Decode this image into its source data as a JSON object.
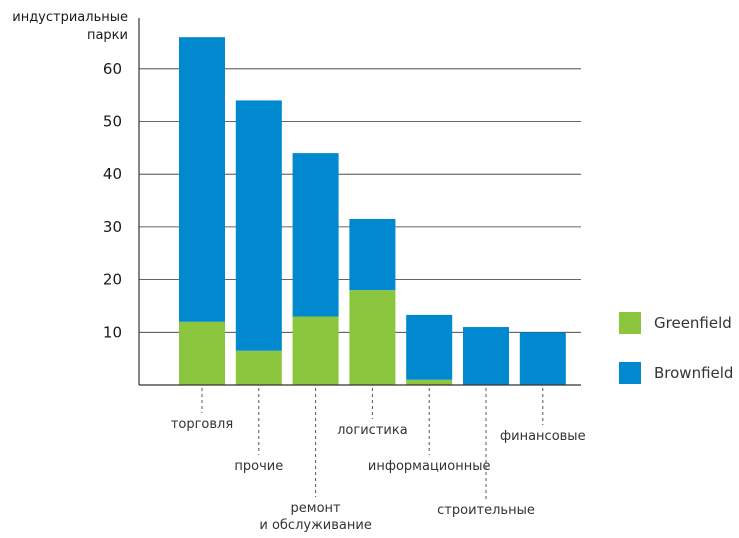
{
  "chart_data": {
    "type": "bar",
    "stacked": true,
    "ylabel": [
      "индустриальные",
      "парки"
    ],
    "xlabel": "",
    "title": "",
    "ylim": [
      0,
      70
    ],
    "yticks": [
      10,
      20,
      30,
      40,
      50,
      60
    ],
    "grid": true,
    "legend_position": "right",
    "categories": [
      [
        "торговля"
      ],
      [
        "прочие"
      ],
      [
        "ремонт",
        "и обслуживание"
      ],
      [
        "логистика"
      ],
      [
        "информационные"
      ],
      [
        "строительные"
      ],
      [
        "финансовые"
      ]
    ],
    "series": [
      {
        "name": "Greenfield",
        "color": "#8cc63f",
        "values": [
          12,
          6.5,
          13,
          18,
          1,
          0,
          0
        ]
      },
      {
        "name": "Brownfield",
        "color": "#0089cf",
        "values": [
          54,
          47.5,
          31,
          13.5,
          12.3,
          11,
          10
        ]
      }
    ]
  }
}
